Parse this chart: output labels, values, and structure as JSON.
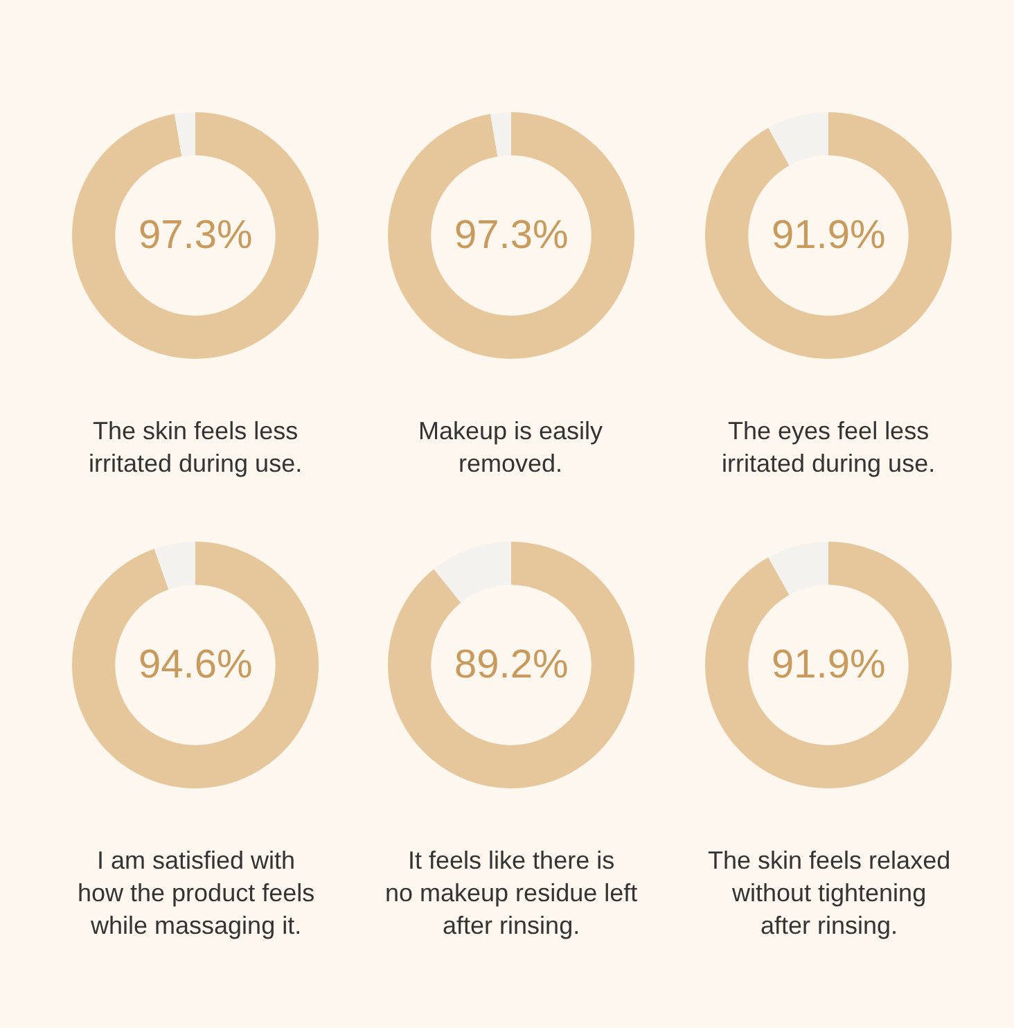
{
  "chart_data": [
    {
      "type": "donut",
      "categories": [
        null,
        null
      ],
      "values": [
        97.3,
        2.7
      ],
      "colors": [
        "#e6c79c",
        "#f4f2ef"
      ],
      "value_labels": [
        "97.3%",
        null
      ],
      "annotations": [
        "The skin feels less\nirritated during use."
      ]
    },
    {
      "type": "donut",
      "categories": [
        null,
        null
      ],
      "values": [
        97.3,
        2.7
      ],
      "colors": [
        "#e6c79c",
        "#f4f2ef"
      ],
      "value_labels": [
        "97.3%",
        null
      ],
      "annotations": [
        "Makeup is easily\nremoved."
      ]
    },
    {
      "type": "donut",
      "categories": [
        null,
        null
      ],
      "values": [
        91.9,
        8.1
      ],
      "colors": [
        "#e6c79c",
        "#f4f2ef"
      ],
      "value_labels": [
        "91.9%",
        null
      ],
      "annotations": [
        "The eyes feel less\nirritated during use."
      ]
    },
    {
      "type": "donut",
      "categories": [
        null,
        null
      ],
      "values": [
        94.6,
        5.4
      ],
      "colors": [
        "#e6c79c",
        "#f4f2ef"
      ],
      "value_labels": [
        "94.6%",
        null
      ],
      "annotations": [
        "I am satisfied with\nhow the product feels\nwhile massaging it."
      ]
    },
    {
      "type": "donut",
      "categories": [
        null,
        null
      ],
      "values": [
        89.2,
        10.8
      ],
      "colors": [
        "#e6c79c",
        "#f4f2ef"
      ],
      "value_labels": [
        "89.2%",
        null
      ],
      "annotations": [
        "It feels like there is\nno makeup residue left\nafter rinsing."
      ]
    },
    {
      "type": "donut",
      "categories": [
        null,
        null
      ],
      "values": [
        91.9,
        8.1
      ],
      "colors": [
        "#e6c79c",
        "#f4f2ef"
      ],
      "value_labels": [
        "91.9%",
        null
      ],
      "annotations": [
        "The skin feels relaxed\nwithout tightening\nafter rinsing."
      ]
    }
  ]
}
